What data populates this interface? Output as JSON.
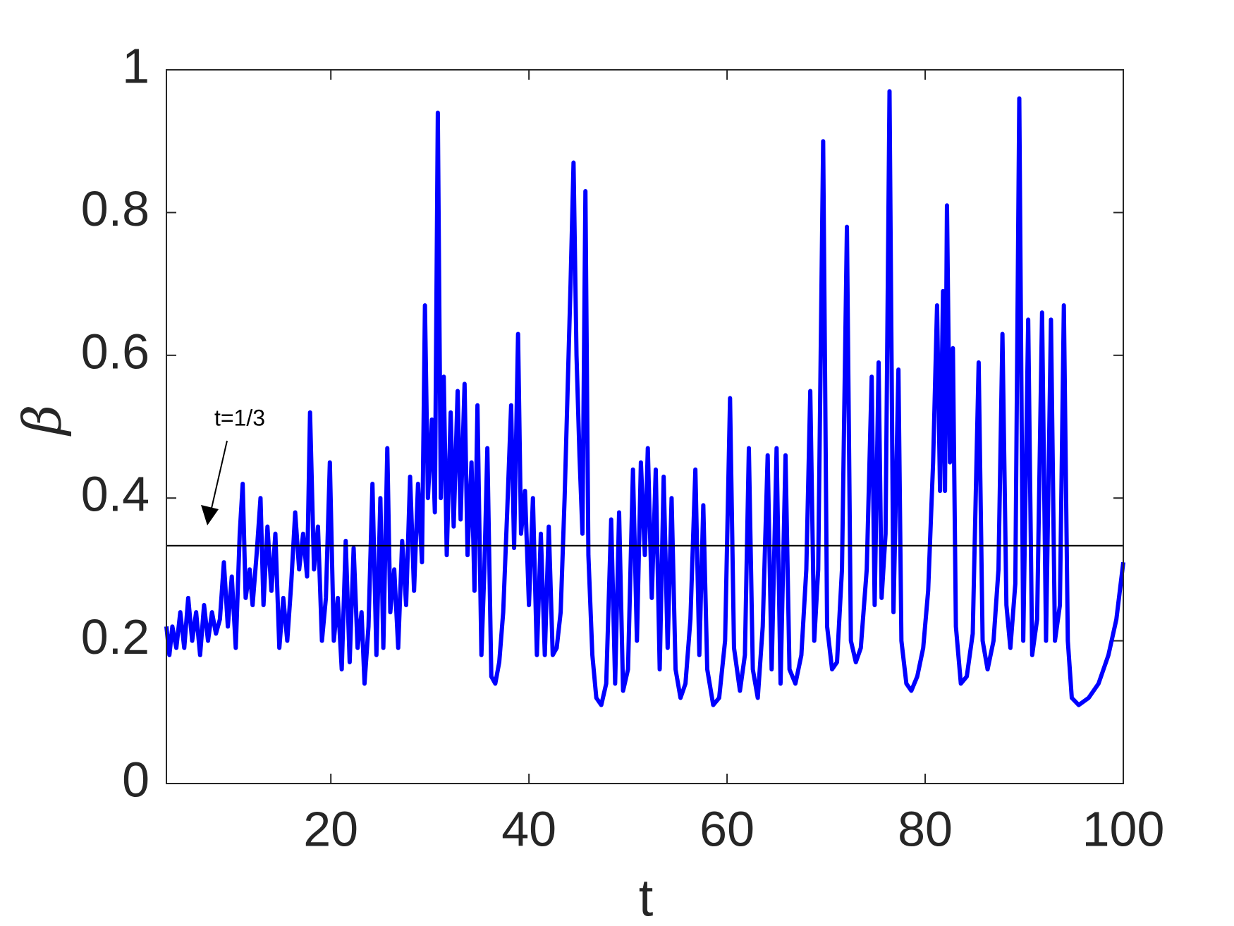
{
  "chart_data": {
    "type": "line",
    "x_label": "t",
    "y_label": "β",
    "annotation": {
      "text": "t=1/3",
      "y": 0.3333,
      "color": "#000000"
    },
    "xlim": [
      3.4,
      100
    ],
    "ylim": [
      0,
      1
    ],
    "xticks": [
      20,
      40,
      60,
      80,
      100
    ],
    "yticks": [
      0,
      0.2,
      0.4,
      0.6,
      0.8,
      1
    ],
    "x": [
      3.4,
      3.7,
      4.0,
      4.4,
      4.8,
      5.2,
      5.6,
      6.0,
      6.4,
      6.8,
      7.2,
      7.6,
      8.0,
      8.4,
      8.8,
      9.2,
      9.6,
      10.0,
      10.4,
      10.8,
      11.1,
      11.4,
      11.8,
      12.1,
      12.5,
      12.9,
      13.2,
      13.6,
      14.0,
      14.4,
      14.8,
      15.2,
      15.6,
      16.0,
      16.4,
      16.8,
      17.2,
      17.6,
      17.9,
      18.3,
      18.7,
      19.1,
      19.5,
      19.9,
      20.3,
      20.7,
      21.1,
      21.5,
      21.9,
      22.3,
      22.7,
      23.1,
      23.4,
      23.8,
      24.2,
      24.6,
      25.0,
      25.3,
      25.7,
      26.0,
      26.4,
      26.8,
      27.2,
      27.6,
      28.0,
      28.4,
      28.8,
      29.2,
      29.5,
      29.8,
      30.2,
      30.5,
      30.8,
      31.1,
      31.4,
      31.7,
      32.1,
      32.4,
      32.8,
      33.1,
      33.5,
      33.8,
      34.2,
      34.5,
      34.8,
      35.2,
      35.5,
      35.8,
      36.2,
      36.6,
      37.0,
      37.4,
      37.8,
      38.2,
      38.5,
      38.9,
      39.2,
      39.6,
      40.0,
      40.4,
      40.8,
      41.2,
      41.6,
      42.0,
      42.4,
      42.8,
      43.2,
      43.6,
      43.9,
      44.2,
      44.5,
      44.8,
      45.1,
      45.4,
      45.7,
      46.0,
      46.4,
      46.8,
      47.3,
      47.8,
      48.3,
      48.7,
      49.1,
      49.5,
      50.0,
      50.5,
      50.9,
      51.3,
      51.7,
      52.0,
      52.4,
      52.8,
      53.2,
      53.6,
      54.0,
      54.4,
      54.8,
      55.3,
      55.8,
      56.3,
      56.8,
      57.2,
      57.6,
      58.0,
      58.6,
      59.2,
      59.8,
      60.3,
      60.7,
      61.3,
      61.8,
      62.2,
      62.6,
      63.1,
      63.6,
      64.1,
      64.5,
      65.0,
      65.4,
      65.9,
      66.3,
      66.9,
      67.5,
      68.0,
      68.4,
      68.8,
      69.2,
      69.7,
      70.1,
      70.6,
      71.1,
      71.6,
      72.1,
      72.5,
      73.0,
      73.5,
      74.1,
      74.6,
      74.9,
      75.3,
      75.6,
      76.0,
      76.4,
      76.8,
      77.3,
      77.6,
      78.1,
      78.6,
      79.2,
      79.8,
      80.3,
      80.8,
      81.2,
      81.5,
      81.8,
      82.0,
      82.2,
      82.5,
      82.8,
      83.1,
      83.6,
      84.2,
      84.8,
      85.4,
      85.8,
      86.3,
      86.9,
      87.4,
      87.8,
      88.2,
      88.6,
      89.1,
      89.5,
      89.9,
      90.4,
      90.8,
      91.3,
      91.8,
      92.2,
      92.7,
      93.1,
      93.6,
      94.0,
      94.4,
      94.8,
      95.5,
      96.5,
      97.5,
      98.5,
      99.3,
      100
    ],
    "series": [
      {
        "color": "#0000ff",
        "values": [
          0.22,
          0.18,
          0.22,
          0.19,
          0.24,
          0.19,
          0.26,
          0.2,
          0.24,
          0.18,
          0.25,
          0.2,
          0.24,
          0.21,
          0.23,
          0.31,
          0.22,
          0.29,
          0.19,
          0.35,
          0.42,
          0.26,
          0.3,
          0.25,
          0.32,
          0.4,
          0.25,
          0.36,
          0.27,
          0.35,
          0.19,
          0.26,
          0.2,
          0.28,
          0.38,
          0.3,
          0.35,
          0.29,
          0.52,
          0.3,
          0.36,
          0.2,
          0.26,
          0.45,
          0.2,
          0.26,
          0.16,
          0.34,
          0.17,
          0.33,
          0.19,
          0.24,
          0.14,
          0.22,
          0.42,
          0.18,
          0.4,
          0.19,
          0.47,
          0.24,
          0.3,
          0.19,
          0.34,
          0.25,
          0.43,
          0.27,
          0.42,
          0.31,
          0.67,
          0.4,
          0.51,
          0.38,
          0.94,
          0.4,
          0.57,
          0.32,
          0.52,
          0.36,
          0.55,
          0.37,
          0.56,
          0.32,
          0.45,
          0.27,
          0.53,
          0.18,
          0.3,
          0.47,
          0.15,
          0.14,
          0.17,
          0.24,
          0.38,
          0.53,
          0.33,
          0.63,
          0.35,
          0.41,
          0.25,
          0.4,
          0.18,
          0.35,
          0.18,
          0.36,
          0.18,
          0.19,
          0.24,
          0.4,
          0.55,
          0.7,
          0.87,
          0.6,
          0.46,
          0.35,
          0.83,
          0.32,
          0.18,
          0.12,
          0.11,
          0.14,
          0.37,
          0.14,
          0.38,
          0.13,
          0.16,
          0.44,
          0.2,
          0.45,
          0.32,
          0.47,
          0.26,
          0.44,
          0.16,
          0.43,
          0.19,
          0.4,
          0.16,
          0.12,
          0.14,
          0.23,
          0.44,
          0.18,
          0.39,
          0.16,
          0.11,
          0.12,
          0.2,
          0.54,
          0.19,
          0.13,
          0.18,
          0.47,
          0.16,
          0.12,
          0.22,
          0.46,
          0.16,
          0.47,
          0.14,
          0.46,
          0.16,
          0.14,
          0.18,
          0.3,
          0.55,
          0.2,
          0.3,
          0.9,
          0.22,
          0.16,
          0.17,
          0.3,
          0.78,
          0.2,
          0.17,
          0.19,
          0.3,
          0.57,
          0.25,
          0.59,
          0.26,
          0.35,
          0.97,
          0.24,
          0.58,
          0.2,
          0.14,
          0.13,
          0.15,
          0.19,
          0.27,
          0.45,
          0.67,
          0.41,
          0.69,
          0.41,
          0.81,
          0.45,
          0.61,
          0.22,
          0.14,
          0.15,
          0.21,
          0.59,
          0.2,
          0.16,
          0.2,
          0.3,
          0.63,
          0.25,
          0.19,
          0.28,
          0.96,
          0.2,
          0.65,
          0.18,
          0.23,
          0.66,
          0.2,
          0.65,
          0.2,
          0.25,
          0.67,
          0.2,
          0.12,
          0.11,
          0.12,
          0.14,
          0.18,
          0.23,
          0.31
        ]
      }
    ]
  }
}
